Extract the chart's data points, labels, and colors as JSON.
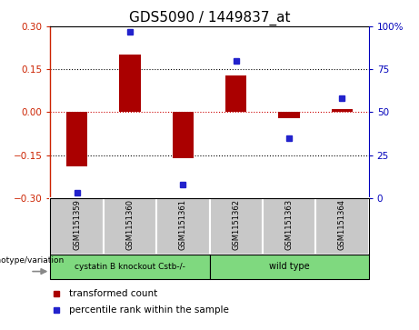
{
  "title": "GDS5090 / 1449837_at",
  "samples": [
    "GSM1151359",
    "GSM1151360",
    "GSM1151361",
    "GSM1151362",
    "GSM1151363",
    "GSM1151364"
  ],
  "transformed_counts": [
    -0.19,
    0.2,
    -0.16,
    0.13,
    -0.02,
    0.01
  ],
  "percentile_ranks": [
    3,
    97,
    8,
    80,
    35,
    58
  ],
  "ylim_left": [
    -0.3,
    0.3
  ],
  "ylim_right": [
    0,
    100
  ],
  "bar_color": "#AA0000",
  "dot_color": "#2222CC",
  "zero_line_color": "#CC0000",
  "yticks_left": [
    -0.3,
    -0.15,
    0,
    0.15,
    0.3
  ],
  "yticks_right": [
    0,
    25,
    50,
    75,
    100
  ],
  "ytick_labels_right": [
    "0",
    "25",
    "50",
    "75",
    "100%"
  ],
  "group1_label": "cystatin B knockout Cstb-/-",
  "group2_label": "wild type",
  "group1_color": "#7FD97F",
  "group2_color": "#7FD97F",
  "sample_box_color": "#C8C8C8",
  "xlabel_left": "genotype/variation",
  "legend_red": "transformed count",
  "legend_blue": "percentile rank within the sample",
  "title_fontsize": 11,
  "axis_color_left": "#CC2200",
  "axis_color_right": "#0000BB"
}
